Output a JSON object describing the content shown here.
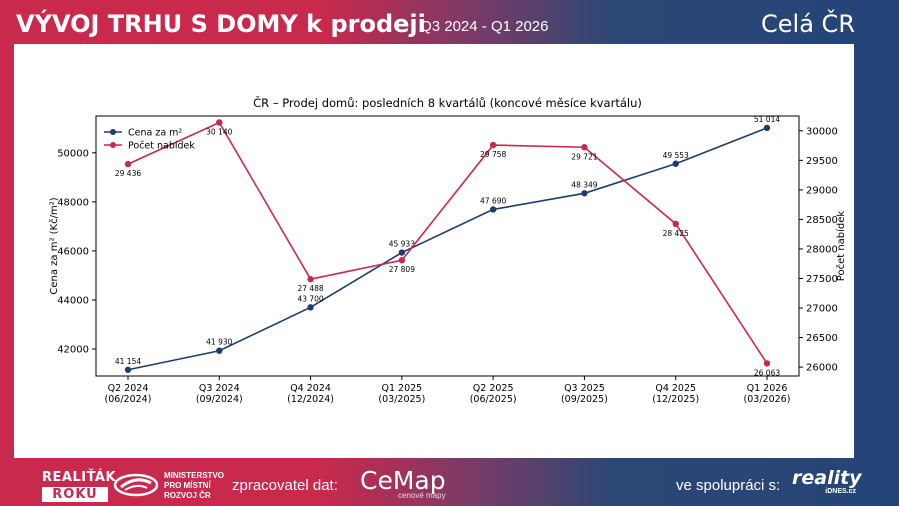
{
  "header": {
    "title": "VÝVOJ TRHU S DOMY k prodeji",
    "subtitle": "| Q3 2024 - Q1 2026",
    "region": "Celá ČR"
  },
  "footer": {
    "award_top": "REALIŤÁK",
    "award_bottom": "ROKU",
    "ministry_line1": "MINISTERSTVO",
    "ministry_line2": "PRO MÍSTNÍ",
    "ministry_line3": "ROZVOJ ČR",
    "processor_label": "zpracovatel dat:",
    "processor_name": "CeMap",
    "processor_tagline": "cenové mapy",
    "coop_label": "ve spolupráci s:",
    "partner_name": "reality",
    "partner_sub": "iDNES.cz"
  },
  "chart_data": {
    "type": "line",
    "title": "ČR – Prodej domů: posledních 8 kvartálů (koncové měsíce kvartálu)",
    "categories": [
      [
        "Q2 2024",
        "(06/2024)"
      ],
      [
        "Q3 2024",
        "(09/2024)"
      ],
      [
        "Q4 2024",
        "(12/2024)"
      ],
      [
        "Q1 2025",
        "(03/2025)"
      ],
      [
        "Q2 2025",
        "(06/2025)"
      ],
      [
        "Q3 2025",
        "(09/2025)"
      ],
      [
        "Q4 2025",
        "(12/2025)"
      ],
      [
        "Q1 2026",
        "(03/2026)"
      ]
    ],
    "ylabel_left": "Cena za m² (Kč/m²)",
    "ylabel_right": "Počet nabídek",
    "ylim_left": [
      40900,
      51500
    ],
    "ylim_right": [
      25850,
      30250
    ],
    "yticks_left": [
      42000,
      44000,
      46000,
      48000,
      50000
    ],
    "yticks_right": [
      26000,
      26500,
      27000,
      27500,
      28000,
      28500,
      29000,
      29500,
      30000
    ],
    "legend_position": "top-left",
    "grid": false,
    "series": [
      {
        "name": "Cena za m²",
        "axis": "left",
        "color": "#1f3c6e",
        "values": [
          41154,
          41930,
          43700,
          45933,
          47690,
          48349,
          49553,
          51014
        ],
        "labels": [
          "41 154",
          "41 930",
          "43 700",
          "45 933",
          "47 690",
          "48 349",
          "49 553",
          "51 014"
        ]
      },
      {
        "name": "Počet nabídek",
        "axis": "right",
        "color": "#c8294d",
        "values": [
          29436,
          30140,
          27488,
          27809,
          29758,
          29721,
          28425,
          26063
        ],
        "labels": [
          "29 436",
          "30 140",
          "27 488",
          "27 809",
          "29 758",
          "29 721",
          "28 425",
          "26 063"
        ]
      }
    ]
  }
}
